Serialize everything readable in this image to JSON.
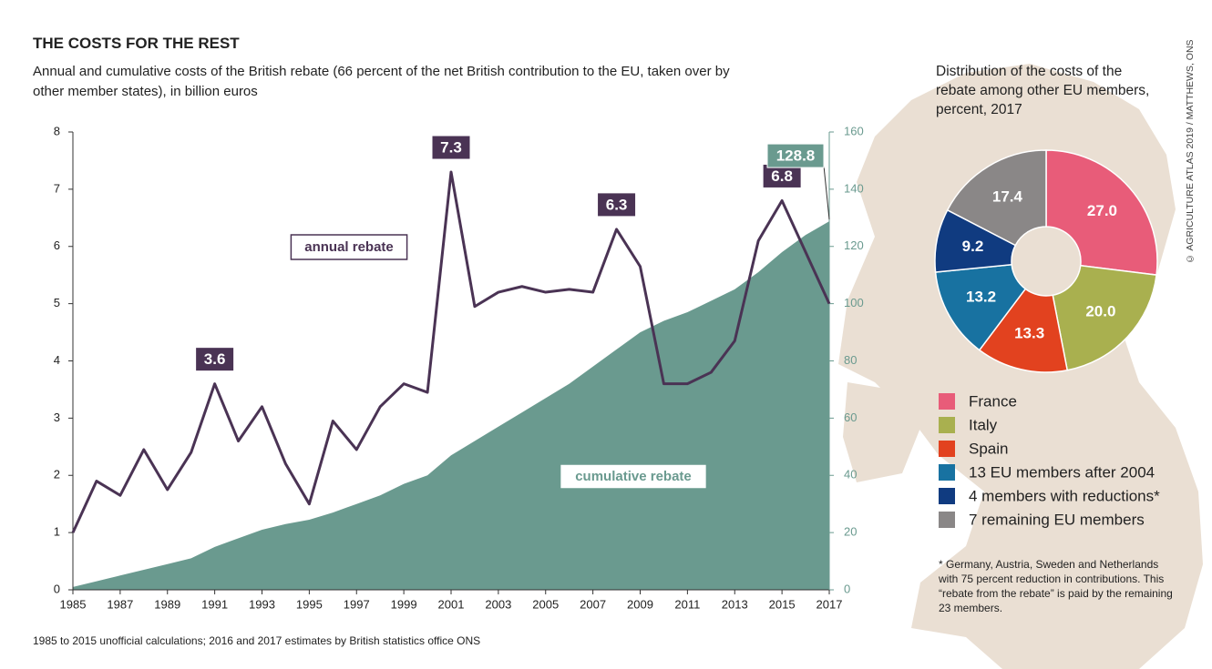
{
  "chart_data": [
    {
      "type": "line",
      "title": "THE COSTS FOR THE REST",
      "subtitle": "Annual and cumulative costs of the British rebate (66 percent of the net British contribution to the EU, taken over by other member states), in billion euros",
      "note": "1985 to 2015 unofficial calculations; 2016 and 2017 estimates by British statistics office ONS",
      "credit": "© AGRICULTURE ATLAS 2019 / MATTHEWS, ONS",
      "x": [
        1985,
        1986,
        1987,
        1988,
        1989,
        1990,
        1991,
        1992,
        1993,
        1994,
        1995,
        1996,
        1997,
        1998,
        1999,
        2000,
        2001,
        2002,
        2003,
        2004,
        2005,
        2006,
        2007,
        2008,
        2009,
        2010,
        2011,
        2012,
        2013,
        2014,
        2015,
        2016,
        2017
      ],
      "xlim": [
        1985,
        2017
      ],
      "xticks": [
        1985,
        1987,
        1989,
        1991,
        1993,
        1995,
        1997,
        1999,
        2001,
        2003,
        2005,
        2007,
        2009,
        2011,
        2013,
        2015,
        2017
      ],
      "ylim": [
        0,
        8
      ],
      "yticks": [
        0,
        1,
        2,
        3,
        4,
        5,
        6,
        7,
        8
      ],
      "y2lim": [
        0,
        160
      ],
      "y2ticks": [
        0,
        20,
        40,
        60,
        80,
        100,
        120,
        140,
        160
      ],
      "series": [
        {
          "name": "annual rebate",
          "type": "line",
          "color": "#4a3354",
          "axis": "y",
          "values": [
            1.0,
            1.9,
            1.65,
            2.45,
            1.75,
            2.4,
            3.6,
            2.6,
            3.2,
            2.2,
            1.5,
            2.95,
            2.45,
            3.2,
            3.6,
            3.45,
            7.3,
            4.95,
            5.2,
            5.3,
            5.2,
            5.25,
            5.2,
            6.3,
            5.65,
            3.6,
            3.6,
            3.8,
            4.35,
            6.1,
            6.8,
            5.9,
            5.0
          ],
          "value_labels": [
            null,
            null,
            null,
            null,
            null,
            null,
            "3.6",
            null,
            null,
            null,
            null,
            null,
            null,
            null,
            null,
            null,
            "7.3",
            null,
            null,
            null,
            null,
            null,
            null,
            "6.3",
            null,
            null,
            null,
            null,
            null,
            null,
            "6.8",
            null,
            null
          ]
        },
        {
          "name": "cumulative rebate",
          "type": "area",
          "color": "#6a9a8f",
          "axis": "y2",
          "values": [
            1,
            3,
            5,
            7,
            9,
            11,
            15,
            18,
            21,
            23,
            24.5,
            27,
            30,
            33,
            37,
            40,
            47,
            52,
            57,
            62,
            67,
            72,
            78,
            84,
            90,
            94,
            97,
            101,
            105,
            111,
            118,
            124,
            128.8
          ],
          "value_labels": [
            null,
            null,
            null,
            null,
            null,
            null,
            null,
            null,
            null,
            null,
            null,
            null,
            null,
            null,
            null,
            null,
            null,
            null,
            null,
            null,
            null,
            null,
            null,
            null,
            null,
            null,
            null,
            null,
            null,
            null,
            null,
            null,
            "128.8"
          ]
        }
      ]
    },
    {
      "type": "pie",
      "title": "Distribution of the costs of the rebate among other EU members, percent, 2017",
      "categories": [
        "France",
        "Italy",
        "Spain",
        "13 EU members after 2004",
        "4 members with reductions*",
        "7 remaining EU members"
      ],
      "values": [
        27.0,
        20.0,
        13.3,
        13.2,
        9.2,
        17.4
      ],
      "value_labels": [
        "27.0",
        "20.0",
        "13.3",
        "13.2",
        "9.2",
        "17.4"
      ],
      "colors": [
        "#e85c79",
        "#a9b04f",
        "#e2421f",
        "#1872a1",
        "#103b80",
        "#8a8787"
      ],
      "note": "* Germany, Austria, Sweden and Netherlands with 75 percent reduction in contributions. This “rebate from the rebate” is paid by the remaining 23 members."
    }
  ]
}
